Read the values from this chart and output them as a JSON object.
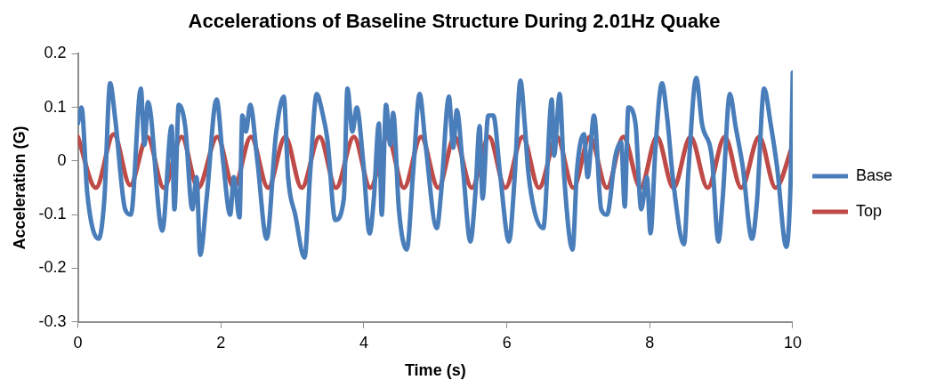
{
  "chart_data": {
    "type": "line",
    "title": "Accelerations of Baseline Structure During 2.01Hz Quake",
    "xlabel": "Time (s)",
    "ylabel": "Acceleration (G)",
    "xlim": [
      0,
      10
    ],
    "xticks": [
      0,
      2,
      4,
      6,
      8,
      10
    ],
    "ylim": [
      -0.3,
      0.2
    ],
    "yticks": [
      -0.3,
      -0.2,
      -0.1,
      0,
      0.1,
      0.2
    ],
    "grid": false,
    "legend": "right",
    "marker": "none",
    "line_style": "solid",
    "series": [
      {
        "name": "Base",
        "color": "#4a7ebb",
        "x": [
          0,
          0.05,
          0.13,
          0.29,
          0.37,
          0.45,
          0.52,
          0.66,
          0.74,
          0.88,
          0.93,
          0.98,
          1.18,
          1.31,
          1.35,
          1.41,
          1.5,
          1.6,
          1.66,
          1.71,
          1.8,
          1.94,
          2.03,
          2.13,
          2.18,
          2.26,
          2.3,
          2.35,
          2.41,
          2.51,
          2.64,
          2.77,
          2.88,
          2.94,
          3.04,
          3.17,
          3.25,
          3.34,
          3.42,
          3.49,
          3.6,
          3.72,
          3.77,
          3.84,
          3.9,
          3.99,
          4.08,
          4.14,
          4.21,
          4.25,
          4.31,
          4.37,
          4.41,
          4.49,
          4.6,
          4.69,
          4.78,
          4.86,
          5.02,
          5.08,
          5.19,
          5.25,
          5.3,
          5.39,
          5.49,
          5.56,
          5.62,
          5.66,
          5.74,
          5.81,
          5.91,
          6.03,
          6.11,
          6.19,
          6.25,
          6.3,
          6.39,
          6.51,
          6.63,
          6.66,
          6.74,
          6.8,
          6.92,
          6.98,
          7.08,
          7.13,
          7.22,
          7.32,
          7.4,
          7.52,
          7.6,
          7.65,
          7.7,
          7.8,
          7.88,
          7.96,
          8.01,
          8.08,
          8.17,
          8.24,
          8.33,
          8.48,
          8.54,
          8.65,
          8.73,
          8.87,
          8.96,
          9.02,
          9.12,
          9.2,
          9.3,
          9.43,
          9.5,
          9.6,
          9.69,
          9.78,
          9.91,
          9.97,
          10
        ],
        "values": [
          0.07,
          0.1,
          -0.06,
          -0.145,
          -0.07,
          0.145,
          0.08,
          -0.09,
          -0.1,
          0.135,
          0.03,
          0.11,
          -0.13,
          0.065,
          -0.09,
          0.105,
          0.065,
          -0.09,
          -0.03,
          -0.175,
          -0.07,
          0.115,
          0,
          -0.1,
          -0.03,
          -0.105,
          0.085,
          0.055,
          0.105,
          0,
          -0.145,
          0.05,
          0.12,
          -0.03,
          -0.1,
          -0.18,
          -0.02,
          0.125,
          0.09,
          0.04,
          -0.11,
          -0.07,
          0.135,
          0.055,
          0.1,
          0,
          -0.135,
          -0.07,
          0.07,
          -0.1,
          0.105,
          0.03,
          0.09,
          -0.09,
          -0.165,
          -0.02,
          0.125,
          0.035,
          -0.125,
          -0.06,
          0.12,
          0.025,
          0.095,
          -0.02,
          -0.15,
          -0.06,
          0.065,
          -0.07,
          0.085,
          0.085,
          -0.03,
          -0.15,
          -0.03,
          0.15,
          0.07,
          -0.02,
          -0.095,
          -0.125,
          0.115,
          0.01,
          0.125,
          -0.025,
          -0.165,
          -0.02,
          0.05,
          -0.03,
          0.085,
          -0.09,
          -0.1,
          0.01,
          0.035,
          -0.085,
          0.1,
          0.07,
          -0.09,
          -0.03,
          -0.135,
          0.025,
          0.145,
          0.085,
          -0.04,
          -0.155,
          -0.02,
          0.155,
          0.07,
          0.005,
          -0.15,
          -0.07,
          0.125,
          0.065,
          -0.01,
          -0.145,
          -0.075,
          0.135,
          0.07,
          -0.01,
          -0.16,
          -0.04,
          0.165
        ]
      },
      {
        "name": "Top",
        "color": "#be4b48",
        "x": [
          0,
          0.25,
          0.5,
          0.73,
          0.97,
          1.2,
          1.45,
          1.68,
          1.95,
          2.18,
          2.42,
          2.66,
          2.9,
          3.13,
          3.38,
          3.61,
          3.86,
          4.09,
          4.33,
          4.56,
          4.8,
          5.04,
          5.27,
          5.51,
          5.75,
          5.98,
          6.22,
          6.45,
          6.7,
          6.93,
          7.16,
          7.4,
          7.63,
          7.87,
          8.1,
          8.33,
          8.57,
          8.81,
          9.05,
          9.28,
          9.53,
          9.76,
          10
        ],
        "values": [
          0.045,
          -0.05,
          0.05,
          -0.045,
          0.045,
          -0.05,
          0.045,
          -0.05,
          0.045,
          -0.05,
          0.045,
          -0.05,
          0.045,
          -0.05,
          0.045,
          -0.05,
          0.045,
          -0.05,
          0.045,
          -0.05,
          0.045,
          -0.05,
          0.045,
          -0.05,
          0.045,
          -0.05,
          0.045,
          -0.05,
          0.045,
          -0.05,
          0.045,
          -0.05,
          0.045,
          -0.05,
          0.045,
          -0.05,
          0.045,
          -0.05,
          0.045,
          -0.05,
          0.045,
          -0.05,
          0.03
        ]
      }
    ]
  }
}
